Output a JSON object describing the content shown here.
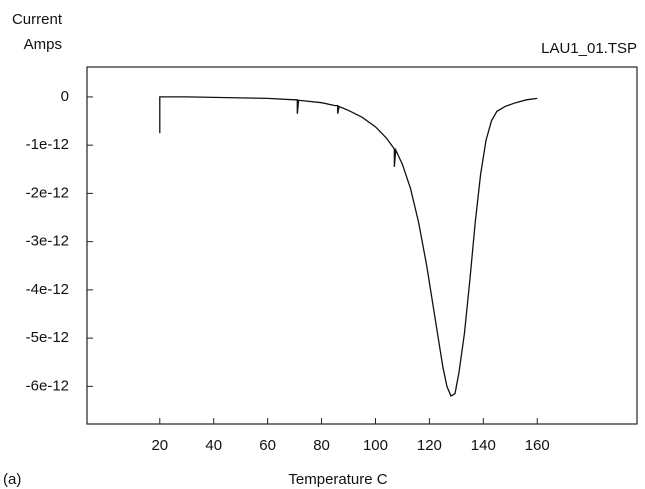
{
  "chart_data": {
    "type": "line",
    "y_label_lines": [
      "Current",
      "Amps"
    ],
    "annotation": "LAU1_01.TSP",
    "panel_label": "(a)",
    "x_label": "Temperature C",
    "color": "#111111",
    "xlim": [
      -7,
      197
    ],
    "xticks": [
      20,
      40,
      60,
      80,
      100,
      120,
      140,
      160
    ],
    "ylim": [
      6.2e-13,
      -6.78e-12
    ],
    "yticks": [
      0,
      -1e-12,
      -2e-12,
      -3e-12,
      -4e-12,
      -5e-12,
      -6e-12
    ],
    "x": [
      20,
      20,
      20.5,
      30,
      40,
      50,
      60,
      70,
      71,
      71,
      71.5,
      80,
      85,
      86,
      86,
      86.5,
      90,
      95,
      100,
      104,
      107,
      107,
      107.5,
      110,
      113,
      116,
      119,
      121,
      123,
      125,
      126.5,
      128,
      129.5,
      131,
      133,
      135,
      137,
      139,
      141,
      143,
      145,
      148,
      152,
      156,
      160
    ],
    "values": [
      -7.5e-13,
      0,
      0,
      0,
      -1e-14,
      -2e-14,
      -3e-14,
      -6e-14,
      -6e-14,
      -3.5e-13,
      -7e-14,
      -1.2e-13,
      -1.8e-13,
      -1.8e-13,
      -3.5e-13,
      -2e-13,
      -2.8e-13,
      -4.2e-13,
      -6.2e-13,
      -8.5e-13,
      -1.08e-12,
      -1.45e-12,
      -1.1e-12,
      -1.4e-12,
      -1.9e-12,
      -2.6e-12,
      -3.5e-12,
      -4.2e-12,
      -4.9e-12,
      -5.6e-12,
      -6e-12,
      -6.2e-12,
      -6.15e-12,
      -5.7e-12,
      -4.9e-12,
      -3.8e-12,
      -2.6e-12,
      -1.6e-12,
      -9e-13,
      -5e-13,
      -3e-13,
      -2e-13,
      -1.2e-13,
      -6e-14,
      -3e-14
    ]
  }
}
